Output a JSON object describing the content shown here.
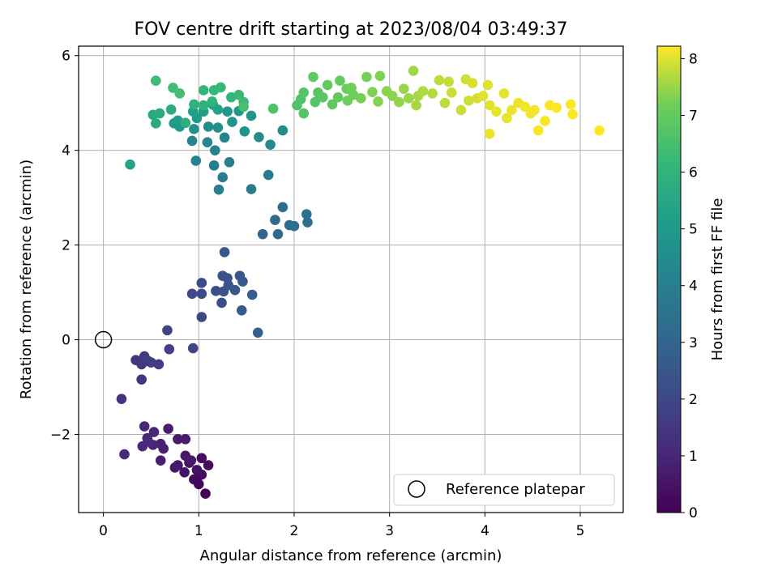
{
  "chart_data": {
    "type": "scatter",
    "title": "FOV centre drift starting at 2023/08/04 03:49:37",
    "xlabel": "Angular distance from reference (arcmin)",
    "ylabel": "Rotation from reference (arcmin)",
    "xlim": [
      -0.26,
      5.45
    ],
    "ylim": [
      -3.65,
      6.2
    ],
    "xticks": [
      "0",
      "1",
      "2",
      "3",
      "4",
      "5"
    ],
    "xtick_values": [
      0,
      1,
      2,
      3,
      4,
      5
    ],
    "yticks": [
      "−2",
      "0",
      "2",
      "4",
      "6"
    ],
    "ytick_values": [
      -2,
      0,
      2,
      4,
      6
    ],
    "grid": true,
    "colormap": "viridis",
    "colorbar": {
      "label": "Hours from first FF file",
      "range": [
        0,
        8.22
      ],
      "ticks": [
        "0",
        "1",
        "2",
        "3",
        "4",
        "5",
        "6",
        "7",
        "8"
      ],
      "tick_values": [
        0,
        1,
        2,
        3,
        4,
        5,
        6,
        7,
        8
      ]
    },
    "legend": {
      "label": "Reference platepar",
      "position": "lower-right"
    },
    "reference_point": [
      0,
      0
    ],
    "points": [
      [
        1.07,
        -3.25,
        0.05
      ],
      [
        1.0,
        -3.05,
        0.15
      ],
      [
        0.95,
        -2.95,
        0.2
      ],
      [
        1.03,
        -2.85,
        0.25
      ],
      [
        1.1,
        -2.65,
        0.3
      ],
      [
        1.03,
        -2.5,
        0.35
      ],
      [
        0.98,
        -2.75,
        0.4
      ],
      [
        0.9,
        -2.6,
        0.45
      ],
      [
        0.85,
        -2.8,
        0.5
      ],
      [
        0.78,
        -2.65,
        0.55
      ],
      [
        0.86,
        -2.45,
        0.6
      ],
      [
        0.75,
        -2.7,
        0.6
      ],
      [
        0.92,
        -2.55,
        0.65
      ],
      [
        0.86,
        -2.1,
        0.7
      ],
      [
        0.78,
        -2.1,
        0.75
      ],
      [
        0.68,
        -1.88,
        0.75
      ],
      [
        0.6,
        -2.55,
        0.8
      ],
      [
        0.63,
        -2.3,
        0.85
      ],
      [
        0.6,
        -2.2,
        0.9
      ],
      [
        0.52,
        -2.22,
        0.95
      ],
      [
        0.46,
        -2.08,
        1.0
      ],
      [
        0.53,
        -1.95,
        1.0
      ],
      [
        0.43,
        -1.83,
        1.05
      ],
      [
        0.41,
        -2.25,
        1.1
      ],
      [
        0.47,
        -2.15,
        1.1
      ],
      [
        0.22,
        -2.42,
        1.15
      ],
      [
        0.19,
        -1.25,
        1.3
      ],
      [
        0.34,
        -0.43,
        1.4
      ],
      [
        0.4,
        -0.52,
        1.45
      ],
      [
        0.4,
        -0.84,
        1.5
      ],
      [
        0.43,
        -0.35,
        1.55
      ],
      [
        0.5,
        -0.48,
        1.6
      ],
      [
        0.58,
        -0.52,
        1.65
      ],
      [
        0.47,
        -0.45,
        1.7
      ],
      [
        0.69,
        -0.2,
        1.8
      ],
      [
        0.67,
        0.2,
        1.85
      ],
      [
        0.94,
        -0.18,
        1.9
      ],
      [
        1.03,
        0.48,
        1.95
      ],
      [
        0.93,
        0.97,
        2.0
      ],
      [
        1.03,
        0.97,
        2.05
      ],
      [
        1.03,
        1.2,
        2.1
      ],
      [
        1.18,
        1.03,
        2.15
      ],
      [
        1.24,
        0.78,
        2.2
      ],
      [
        1.26,
        1.02,
        2.25
      ],
      [
        1.25,
        1.35,
        2.3
      ],
      [
        1.3,
        1.3,
        2.35
      ],
      [
        1.31,
        1.15,
        2.4
      ],
      [
        1.38,
        1.05,
        2.45
      ],
      [
        1.27,
        1.85,
        2.5
      ],
      [
        1.43,
        1.35,
        2.55
      ],
      [
        1.46,
        1.23,
        2.6
      ],
      [
        1.45,
        0.62,
        2.65
      ],
      [
        1.56,
        0.95,
        2.7
      ],
      [
        1.62,
        0.15,
        2.8
      ],
      [
        1.67,
        2.23,
        3.0
      ],
      [
        1.8,
        2.53,
        3.1
      ],
      [
        1.83,
        2.23,
        3.15
      ],
      [
        1.88,
        2.8,
        3.2
      ],
      [
        1.95,
        2.42,
        3.25
      ],
      [
        2.0,
        2.4,
        3.3
      ],
      [
        2.14,
        2.48,
        3.35
      ],
      [
        2.13,
        2.65,
        3.4
      ],
      [
        1.73,
        3.48,
        3.8
      ],
      [
        1.55,
        3.18,
        3.85
      ],
      [
        1.21,
        3.17,
        3.9
      ],
      [
        1.25,
        3.43,
        3.95
      ],
      [
        1.16,
        3.68,
        4.0
      ],
      [
        1.32,
        3.75,
        4.05
      ],
      [
        0.97,
        3.78,
        4.1
      ],
      [
        1.17,
        4.0,
        4.15
      ],
      [
        1.27,
        4.27,
        4.2
      ],
      [
        0.93,
        4.2,
        4.25
      ],
      [
        1.09,
        4.17,
        4.3
      ],
      [
        1.75,
        4.12,
        4.4
      ],
      [
        1.88,
        4.42,
        4.45
      ],
      [
        1.63,
        4.28,
        4.5
      ],
      [
        0.95,
        4.45,
        4.55
      ],
      [
        1.1,
        4.5,
        4.6
      ],
      [
        1.2,
        4.48,
        4.65
      ],
      [
        1.35,
        4.6,
        4.7
      ],
      [
        1.48,
        4.4,
        4.75
      ],
      [
        1.55,
        4.73,
        4.8
      ],
      [
        1.3,
        4.82,
        4.85
      ],
      [
        1.42,
        4.83,
        4.9
      ],
      [
        0.8,
        4.5,
        4.95
      ],
      [
        0.74,
        4.57,
        5.0
      ],
      [
        0.78,
        4.63,
        5.05
      ],
      [
        0.98,
        4.68,
        5.1
      ],
      [
        1.05,
        4.82,
        5.15
      ],
      [
        0.94,
        4.82,
        5.2
      ],
      [
        1.2,
        4.86,
        5.25
      ],
      [
        1.15,
        4.96,
        5.3
      ],
      [
        0.28,
        3.7,
        5.4
      ],
      [
        0.55,
        4.57,
        5.55
      ],
      [
        0.52,
        4.75,
        5.6
      ],
      [
        0.59,
        4.78,
        5.65
      ],
      [
        0.71,
        4.86,
        5.7
      ],
      [
        0.86,
        4.58,
        5.8
      ],
      [
        0.95,
        4.97,
        5.9
      ],
      [
        1.05,
        4.95,
        5.95
      ],
      [
        1.14,
        5.03,
        6.0
      ],
      [
        1.34,
        5.12,
        6.05
      ],
      [
        1.05,
        5.27,
        6.1
      ],
      [
        1.16,
        5.27,
        6.15
      ],
      [
        1.23,
        5.33,
        6.2
      ],
      [
        1.42,
        5.17,
        6.25
      ],
      [
        1.47,
        5.02,
        6.3
      ],
      [
        0.55,
        5.47,
        6.35
      ],
      [
        0.73,
        5.32,
        6.4
      ],
      [
        0.8,
        5.2,
        6.45
      ],
      [
        1.47,
        4.92,
        6.5
      ],
      [
        1.78,
        4.88,
        6.6
      ],
      [
        2.03,
        4.95,
        6.65
      ],
      [
        2.1,
        4.78,
        6.7
      ],
      [
        2.07,
        5.08,
        6.7
      ],
      [
        2.1,
        5.22,
        6.75
      ],
      [
        2.22,
        5.02,
        6.75
      ],
      [
        2.25,
        5.22,
        6.8
      ],
      [
        2.3,
        5.12,
        6.85
      ],
      [
        2.4,
        4.97,
        6.9
      ],
      [
        2.46,
        5.12,
        6.95
      ],
      [
        2.2,
        5.55,
        6.95
      ],
      [
        2.35,
        5.38,
        7.0
      ],
      [
        2.48,
        5.47,
        7.0
      ],
      [
        2.55,
        5.3,
        7.05
      ],
      [
        2.62,
        5.17,
        7.1
      ],
      [
        2.56,
        5.05,
        7.15
      ],
      [
        2.6,
        5.32,
        7.2
      ],
      [
        2.7,
        5.1,
        7.25
      ],
      [
        2.76,
        5.55,
        7.25
      ],
      [
        2.82,
        5.23,
        7.3
      ],
      [
        2.9,
        5.57,
        7.3
      ],
      [
        2.88,
        5.03,
        7.35
      ],
      [
        2.97,
        5.25,
        7.4
      ],
      [
        3.03,
        5.15,
        7.4
      ],
      [
        3.1,
        5.02,
        7.45
      ],
      [
        3.15,
        5.3,
        7.5
      ],
      [
        3.2,
        5.1,
        7.5
      ],
      [
        3.25,
        5.68,
        7.55
      ],
      [
        3.3,
        5.15,
        7.6
      ],
      [
        3.28,
        4.95,
        7.6
      ],
      [
        3.35,
        5.25,
        7.65
      ],
      [
        3.45,
        5.2,
        7.7
      ],
      [
        3.52,
        5.48,
        7.75
      ],
      [
        3.58,
        5.0,
        7.75
      ],
      [
        3.62,
        5.45,
        7.8
      ],
      [
        3.65,
        5.22,
        7.85
      ],
      [
        3.75,
        4.85,
        7.85
      ],
      [
        3.8,
        5.5,
        7.9
      ],
      [
        3.83,
        5.05,
        7.9
      ],
      [
        3.87,
        5.42,
        7.95
      ],
      [
        3.92,
        5.1,
        7.95
      ],
      [
        3.98,
        5.15,
        8.0
      ],
      [
        4.03,
        5.38,
        8.0
      ],
      [
        4.05,
        4.95,
        8.02
      ],
      [
        4.12,
        4.82,
        8.05
      ],
      [
        4.2,
        5.2,
        8.05
      ],
      [
        4.23,
        4.68,
        8.07
      ],
      [
        4.28,
        4.85,
        8.08
      ],
      [
        4.35,
        5.0,
        8.1
      ],
      [
        4.42,
        4.92,
        8.12
      ],
      [
        4.48,
        4.78,
        8.13
      ],
      [
        4.52,
        4.85,
        8.15
      ],
      [
        4.56,
        4.42,
        8.17
      ],
      [
        4.63,
        4.62,
        8.18
      ],
      [
        4.68,
        4.95,
        8.19
      ],
      [
        4.75,
        4.9,
        8.2
      ],
      [
        4.9,
        4.97,
        8.21
      ],
      [
        4.92,
        4.76,
        8.21
      ],
      [
        5.2,
        4.42,
        8.22
      ],
      [
        4.05,
        4.35,
        8.1
      ]
    ]
  }
}
